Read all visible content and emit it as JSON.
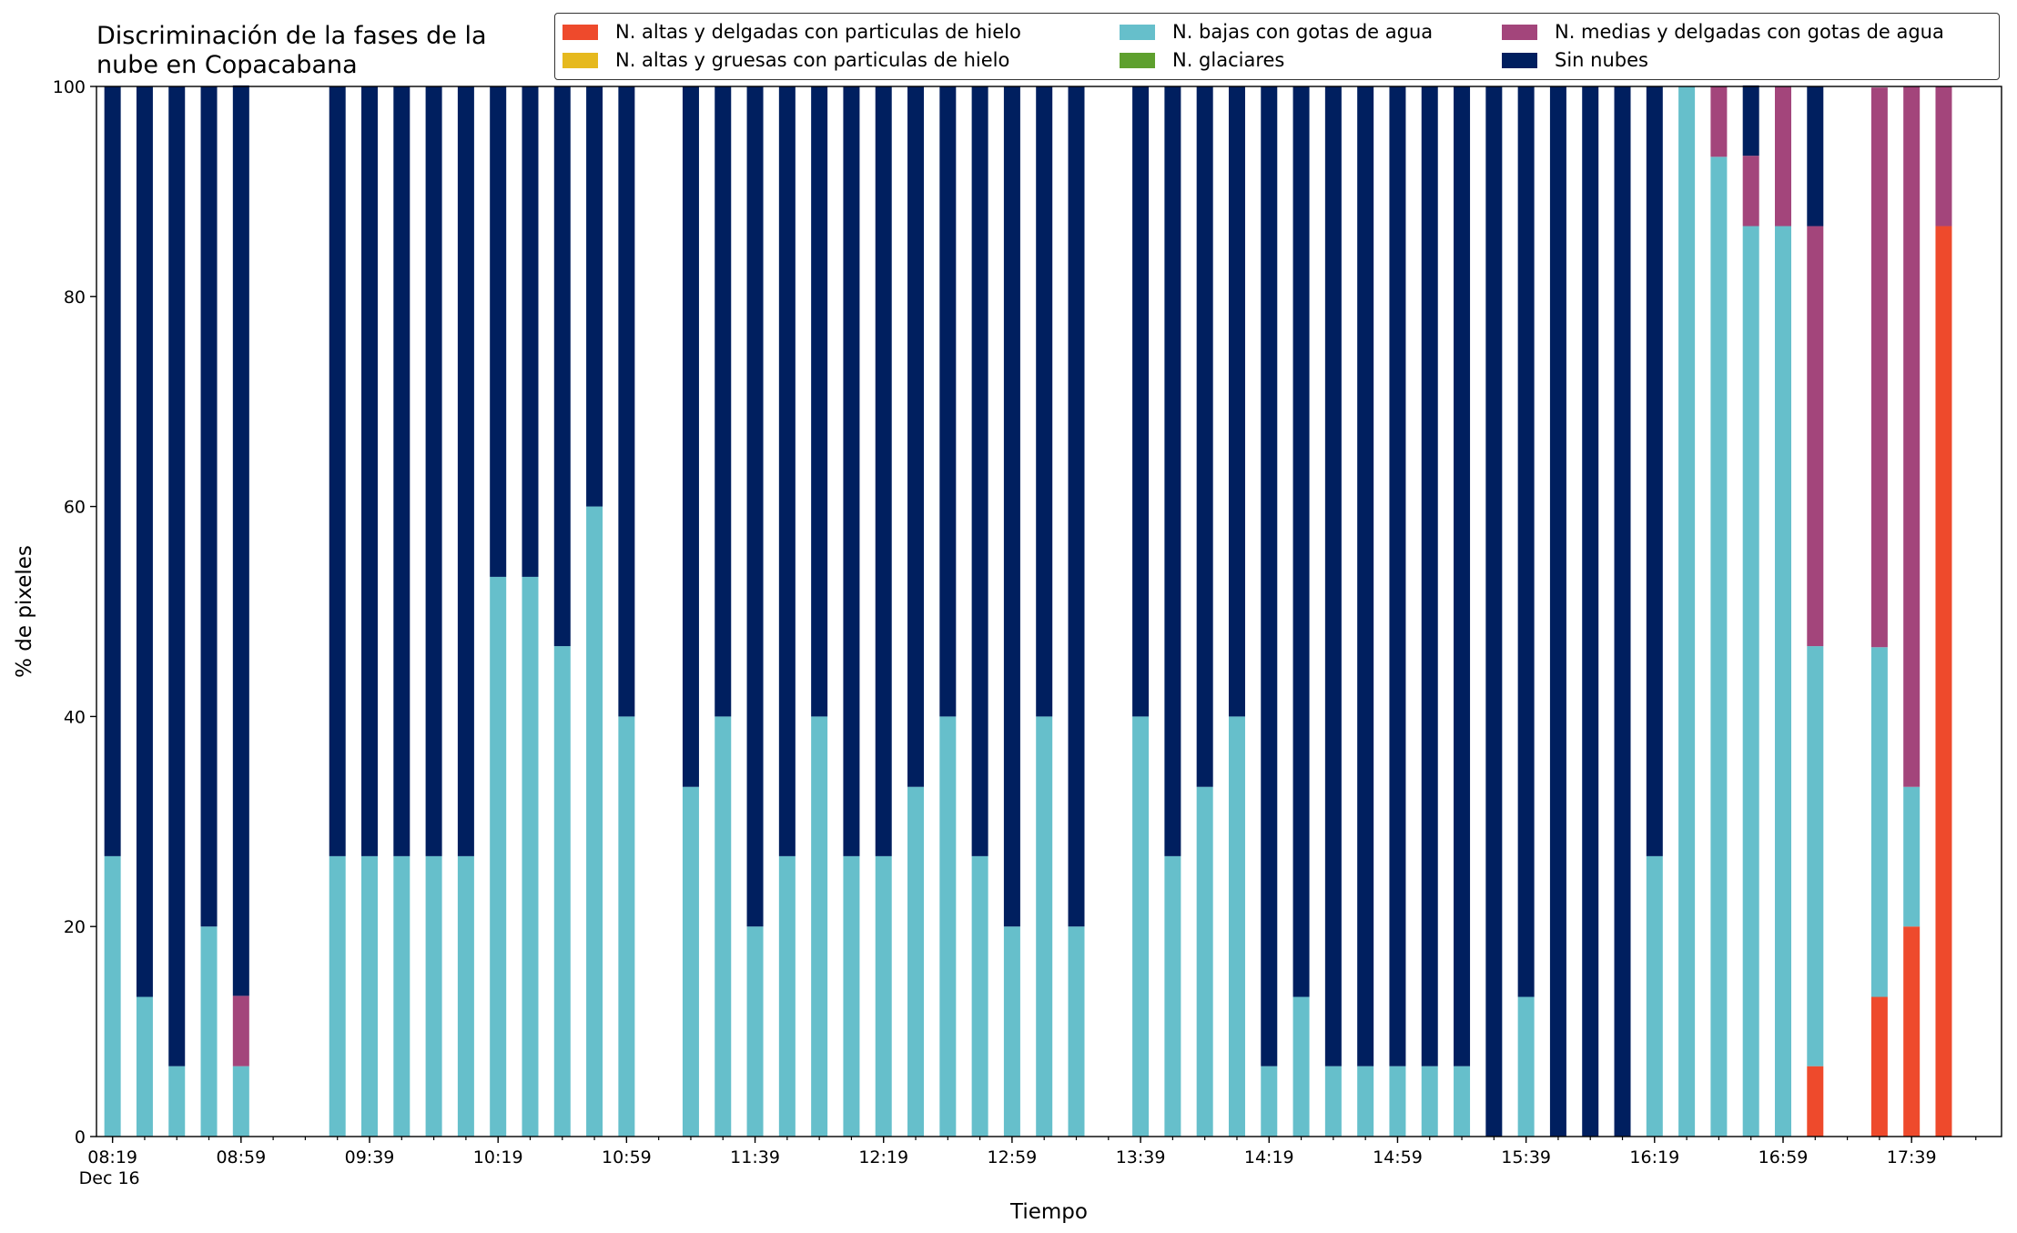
{
  "chart_data": {
    "type": "stacked_bar",
    "title": "Discriminación de la fases de la\nnube en Copacabana",
    "xlabel": "Tiempo",
    "ylabel": "% de pixeles",
    "x_date_label": "Dec 16",
    "x": [
      "08:19",
      "08:29",
      "08:39",
      "08:49",
      "08:59",
      "09:29",
      "09:39",
      "09:49",
      "09:59",
      "10:09",
      "10:19",
      "10:29",
      "10:39",
      "10:49",
      "10:59",
      "11:19",
      "11:29",
      "11:39",
      "11:49",
      "11:59",
      "12:09",
      "12:19",
      "12:29",
      "12:39",
      "12:49",
      "12:59",
      "13:09",
      "13:19",
      "13:39",
      "13:49",
      "13:59",
      "14:09",
      "14:19",
      "14:29",
      "14:39",
      "14:49",
      "14:59",
      "15:09",
      "15:19",
      "15:29",
      "15:39",
      "15:49",
      "15:59",
      "16:09",
      "16:19",
      "16:29",
      "16:39",
      "16:49",
      "16:59",
      "17:09",
      "17:29",
      "17:39",
      "17:49"
    ],
    "xlim": [
      "08:14",
      "18:07"
    ],
    "xticks": [
      "08:19",
      "08:59",
      "09:39",
      "10:19",
      "10:59",
      "11:39",
      "12:19",
      "12:59",
      "13:39",
      "14:19",
      "14:59",
      "15:39",
      "16:19",
      "16:59",
      "17:39"
    ],
    "ylim": [
      0,
      100
    ],
    "yticks": [
      0,
      20,
      40,
      60,
      80,
      100
    ],
    "legend_position": "top-right",
    "series": [
      {
        "name": "N. altas y delgadas con particulas de hielo",
        "color": "#ee4a2c",
        "values": [
          0,
          0,
          0,
          0,
          0,
          0,
          0,
          0,
          0,
          0,
          0,
          0,
          0,
          0,
          0,
          0,
          0,
          0,
          0,
          0,
          0,
          0,
          0,
          0,
          0,
          0,
          0,
          0,
          0,
          0,
          0,
          0,
          0,
          0,
          0,
          0,
          0,
          0,
          0,
          0,
          0,
          0,
          0,
          0,
          0,
          0,
          0,
          0,
          0,
          6.7,
          13.3,
          20,
          86.7
        ]
      },
      {
        "name": "N. altas y gruesas con particulas de hielo",
        "color": "#e6b91e",
        "values": [
          0,
          0,
          0,
          0,
          0,
          0,
          0,
          0,
          0,
          0,
          0,
          0,
          0,
          0,
          0,
          0,
          0,
          0,
          0,
          0,
          0,
          0,
          0,
          0,
          0,
          0,
          0,
          0,
          0,
          0,
          0,
          0,
          0,
          0,
          0,
          0,
          0,
          0,
          0,
          0,
          0,
          0,
          0,
          0,
          0,
          0,
          0,
          0,
          0,
          0,
          0,
          0,
          0
        ]
      },
      {
        "name": "N. bajas con gotas de agua",
        "color": "#66bfcb",
        "values": [
          26.7,
          13.3,
          6.7,
          20,
          6.7,
          26.7,
          26.7,
          26.7,
          26.7,
          26.7,
          53.3,
          53.3,
          46.7,
          60,
          40,
          33.3,
          40,
          20,
          26.7,
          40,
          26.7,
          26.7,
          33.3,
          40,
          26.7,
          20,
          40,
          20,
          40,
          26.7,
          33.3,
          40,
          6.7,
          13.3,
          6.7,
          6.7,
          6.7,
          6.7,
          6.7,
          0,
          13.3,
          0,
          0,
          0,
          26.7,
          100,
          93.3,
          86.7,
          86.7,
          40,
          33.3,
          13.3,
          0
        ]
      },
      {
        "name": "N. glaciares",
        "color": "#5ea02e",
        "values": [
          0,
          0,
          0,
          0,
          0,
          0,
          0,
          0,
          0,
          0,
          0,
          0,
          0,
          0,
          0,
          0,
          0,
          0,
          0,
          0,
          0,
          0,
          0,
          0,
          0,
          0,
          0,
          0,
          0,
          0,
          0,
          0,
          0,
          0,
          0,
          0,
          0,
          0,
          0,
          0,
          0,
          0,
          0,
          0,
          0,
          0,
          0,
          0,
          0,
          0,
          0,
          0,
          0
        ]
      },
      {
        "name": "N. medias y delgadas con gotas de agua",
        "color": "#a3457b",
        "values": [
          0,
          0,
          0,
          0,
          6.7,
          0,
          0,
          0,
          0,
          0,
          0,
          0,
          0,
          0,
          0,
          0,
          0,
          0,
          0,
          0,
          0,
          0,
          0,
          0,
          0,
          0,
          0,
          0,
          0,
          0,
          0,
          0,
          0,
          0,
          0,
          0,
          0,
          0,
          0,
          0,
          0,
          0,
          0,
          0,
          0,
          0,
          6.7,
          6.7,
          13.3,
          40,
          53.3,
          66.7,
          13.3
        ]
      },
      {
        "name": "Sin nubes",
        "color": "#001f5f",
        "values": [
          73.3,
          86.7,
          93.3,
          80,
          86.7,
          73.3,
          73.3,
          73.3,
          73.3,
          73.3,
          46.7,
          46.7,
          53.3,
          40,
          60,
          66.7,
          60,
          80,
          73.3,
          60,
          73.3,
          73.3,
          66.7,
          60,
          73.3,
          80,
          60,
          80,
          60,
          73.3,
          66.7,
          60,
          93.3,
          86.7,
          93.3,
          93.3,
          93.3,
          93.3,
          93.3,
          100,
          86.7,
          100,
          100,
          100,
          73.3,
          0,
          0,
          6.7,
          0,
          13.3,
          0,
          0,
          0
        ]
      }
    ]
  }
}
